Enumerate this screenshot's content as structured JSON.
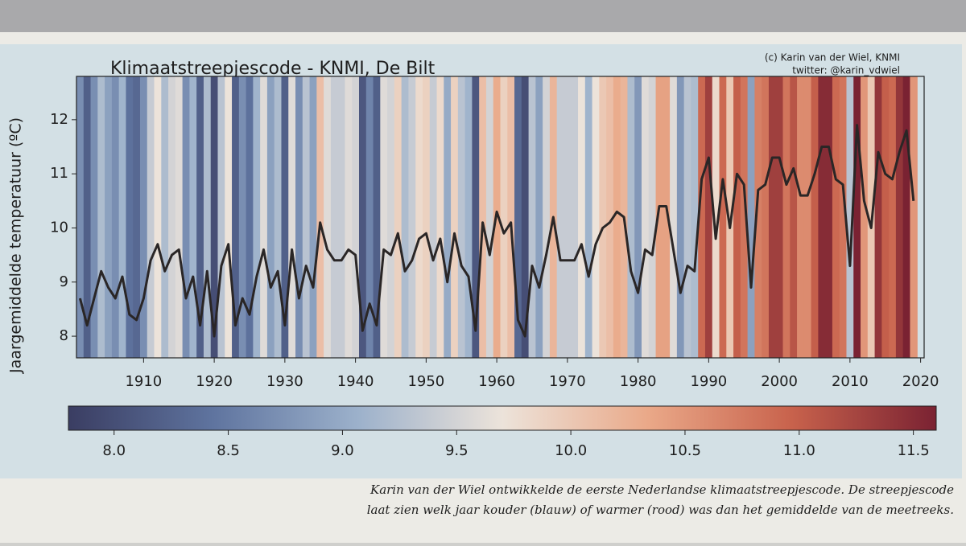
{
  "chart_data": {
    "type": "line",
    "title": "Klimaatstreepjescode - KNMI, De Bilt",
    "credit": [
      "(c) Karin van der Wiel, KNMI",
      "twitter: @karin_vdwiel"
    ],
    "ylabel": "Jaargemiddelde temperatuur (ºC)",
    "x": [
      1901,
      1902,
      1903,
      1904,
      1905,
      1906,
      1907,
      1908,
      1909,
      1910,
      1911,
      1912,
      1913,
      1914,
      1915,
      1916,
      1917,
      1918,
      1919,
      1920,
      1921,
      1922,
      1923,
      1924,
      1925,
      1926,
      1927,
      1928,
      1929,
      1930,
      1931,
      1932,
      1933,
      1934,
      1935,
      1936,
      1937,
      1938,
      1939,
      1940,
      1941,
      1942,
      1943,
      1944,
      1945,
      1946,
      1947,
      1948,
      1949,
      1950,
      1951,
      1952,
      1953,
      1954,
      1955,
      1956,
      1957,
      1958,
      1959,
      1960,
      1961,
      1962,
      1963,
      1964,
      1965,
      1966,
      1967,
      1968,
      1969,
      1970,
      1971,
      1972,
      1973,
      1974,
      1975,
      1976,
      1977,
      1978,
      1979,
      1980,
      1981,
      1982,
      1983,
      1984,
      1985,
      1986,
      1987,
      1988,
      1989,
      1990,
      1991,
      1992,
      1993,
      1994,
      1995,
      1996,
      1997,
      1998,
      1999,
      2000,
      2001,
      2002,
      2003,
      2004,
      2005,
      2006,
      2007,
      2008,
      2009,
      2010,
      2011,
      2012,
      2013,
      2014,
      2015,
      2016,
      2017,
      2018,
      2019
    ],
    "values": [
      8.7,
      8.2,
      8.7,
      9.2,
      8.9,
      8.7,
      9.1,
      8.4,
      8.3,
      8.7,
      9.4,
      9.7,
      9.2,
      9.5,
      9.6,
      8.7,
      9.1,
      8.2,
      9.2,
      8.0,
      9.3,
      9.7,
      8.2,
      8.7,
      8.4,
      9.1,
      9.6,
      8.9,
      9.2,
      8.2,
      9.6,
      8.7,
      9.3,
      8.9,
      10.1,
      9.6,
      9.4,
      9.4,
      9.6,
      9.5,
      8.1,
      8.6,
      8.2,
      9.6,
      9.5,
      9.9,
      9.2,
      9.4,
      9.8,
      9.9,
      9.4,
      9.8,
      9.0,
      9.9,
      9.3,
      9.1,
      8.1,
      10.1,
      9.5,
      10.3,
      9.9,
      10.1,
      8.3,
      8.0,
      9.3,
      8.9,
      9.5,
      10.2,
      9.4,
      9.4,
      9.4,
      9.7,
      9.1,
      9.7,
      10.0,
      10.1,
      10.3,
      10.2,
      9.2,
      8.8,
      9.6,
      9.5,
      10.4,
      10.4,
      9.6,
      8.8,
      9.3,
      9.2,
      10.9,
      11.3,
      9.8,
      10.9,
      10.0,
      11.0,
      10.8,
      8.9,
      10.7,
      10.8,
      11.3,
      11.3,
      10.8,
      11.1,
      10.6,
      10.6,
      11.0,
      11.5,
      11.5,
      10.9,
      10.8,
      9.3,
      11.9,
      10.5,
      10.0,
      11.4,
      11.0,
      10.9,
      11.4,
      11.8,
      10.5
    ],
    "line_color": "#2a2626",
    "xlim": [
      1900.5,
      2020.5
    ],
    "xticks": [
      1910,
      1920,
      1930,
      1940,
      1950,
      1960,
      1970,
      1980,
      1990,
      2000,
      2010,
      2020
    ],
    "ylim": [
      7.6,
      12.8
    ],
    "yticks": [
      8,
      9,
      10,
      11,
      12
    ],
    "colormap": [
      "#3a3d62",
      "#5f749f",
      "#9cb1cb",
      "#ece3da",
      "#eaa989",
      "#c8624c",
      "#7a2232"
    ],
    "colorbar": {
      "lim": [
        7.8,
        11.6
      ],
      "ticks": [
        {
          "value": 8,
          "label": "8.0"
        },
        {
          "value": 8.5,
          "label": "8.5"
        },
        {
          "value": 9,
          "label": "9.0"
        },
        {
          "value": 9.5,
          "label": "9.5"
        },
        {
          "value": 10,
          "label": "10.0"
        },
        {
          "value": 10.5,
          "label": "10.5"
        },
        {
          "value": 11,
          "label": "11.0"
        },
        {
          "value": 11.5,
          "label": "11.5"
        }
      ]
    },
    "caption": [
      "Karin van der Wiel ontwikkelde de eerste Nederlandse klimaatstreepjescode. De streepjescode",
      "laat zien welk jaar kouder (blauw) of warmer (rood) was dan het gemiddelde van de meetreeks."
    ]
  }
}
